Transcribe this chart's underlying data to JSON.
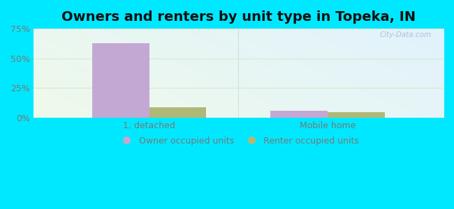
{
  "title": "Owners and renters by unit type in Topeka, IN",
  "categories": [
    "1, detached",
    "Mobile home"
  ],
  "owner_values": [
    63.0,
    5.5
  ],
  "renter_values": [
    8.5,
    4.5
  ],
  "owner_color": "#c4a8d4",
  "renter_color": "#b0b878",
  "ylim": [
    0,
    75
  ],
  "yticks": [
    0,
    25,
    50,
    75
  ],
  "ytick_labels": [
    "0%",
    "25%",
    "50%",
    "75%"
  ],
  "bar_width": 0.32,
  "background_outer": "#00e8ff",
  "watermark": "City-Data.com",
  "legend_labels": [
    "Owner occupied units",
    "Renter occupied units"
  ],
  "title_fontsize": 14,
  "tick_fontsize": 9,
  "legend_fontsize": 9,
  "grid_color": "#d8e8d0",
  "tick_color": "#777777"
}
